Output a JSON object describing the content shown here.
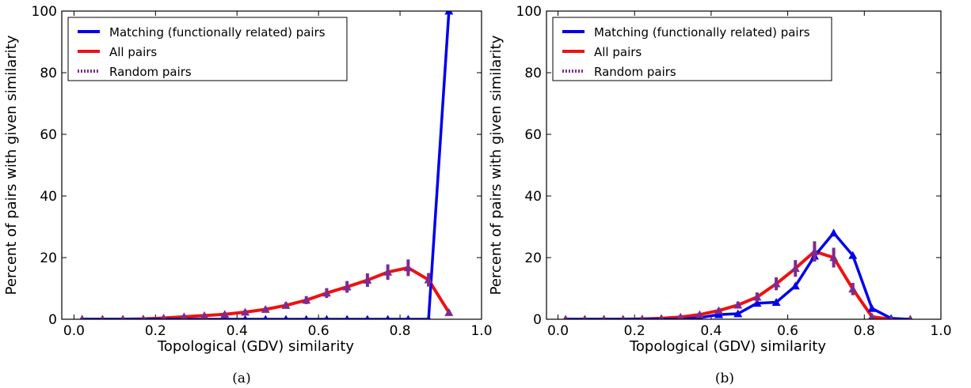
{
  "chart_data": [
    {
      "type": "line",
      "caption": "(a)",
      "xlabel": "Topological (GDV) similarity",
      "ylabel": "Percent of pairs with given similarity",
      "xlim": [
        -0.03,
        1.0
      ],
      "ylim": [
        0,
        100
      ],
      "xticks": [
        "0.0",
        "0.2",
        "0.4",
        "0.6",
        "0.8",
        "1.0"
      ],
      "yticks": [
        "0",
        "20",
        "40",
        "60",
        "80",
        "100"
      ],
      "legend_position": "top-left",
      "x": [
        0.02,
        0.07,
        0.12,
        0.17,
        0.22,
        0.27,
        0.32,
        0.37,
        0.42,
        0.47,
        0.52,
        0.57,
        0.62,
        0.67,
        0.72,
        0.77,
        0.82,
        0.87,
        0.92
      ],
      "series": [
        {
          "name": "Matching (functionally related) pairs",
          "color": "#0000ee",
          "values": [
            0,
            0,
            0,
            0,
            0,
            0,
            0,
            0,
            0,
            0,
            0,
            0,
            0,
            0,
            0,
            0,
            0,
            0,
            100
          ]
        },
        {
          "name": "All pairs",
          "color": "#ee1111",
          "values": [
            0,
            0,
            0,
            0.1,
            0.4,
            0.8,
            1.2,
            1.6,
            2.3,
            3.2,
            4.5,
            6.2,
            8.5,
            10.5,
            12.7,
            15.3,
            16.7,
            12.8,
            2.2
          ]
        },
        {
          "name": "Random pairs",
          "color": "#7f2a8f",
          "values": [
            0,
            0,
            0,
            0.1,
            0.4,
            0.8,
            1.2,
            1.6,
            2.3,
            3.2,
            4.5,
            6.2,
            8.5,
            10.5,
            12.7,
            15.3,
            16.7,
            12.8,
            2.2
          ],
          "error": [
            0,
            0,
            0,
            0.2,
            0.4,
            0.5,
            0.5,
            0.6,
            0.7,
            0.8,
            1.0,
            1.3,
            1.6,
            1.9,
            2.2,
            2.5,
            2.7,
            2.2,
            0.7
          ]
        }
      ]
    },
    {
      "type": "line",
      "caption": "(b)",
      "xlabel": "Topological (GDV) similarity",
      "ylabel": "Percent of pairs with given similarity",
      "xlim": [
        -0.03,
        1.0
      ],
      "ylim": [
        0,
        100
      ],
      "xticks": [
        "0.0",
        "0.2",
        "0.4",
        "0.6",
        "0.8",
        "1.0"
      ],
      "yticks": [
        "0",
        "20",
        "40",
        "60",
        "80",
        "100"
      ],
      "legend_position": "top-left",
      "x": [
        0.02,
        0.07,
        0.12,
        0.17,
        0.22,
        0.27,
        0.32,
        0.37,
        0.42,
        0.47,
        0.52,
        0.57,
        0.62,
        0.67,
        0.72,
        0.77,
        0.82,
        0.87,
        0.92
      ],
      "series": [
        {
          "name": "Matching (functionally related) pairs",
          "color": "#0000ee",
          "values": [
            0,
            0,
            0,
            0,
            0,
            0,
            0,
            0.5,
            1.5,
            1.8,
            5.2,
            5.5,
            10.8,
            20.5,
            28.0,
            20.7,
            3.5,
            0.3,
            0
          ]
        },
        {
          "name": "All pairs",
          "color": "#ee1111",
          "values": [
            0,
            0,
            0,
            0,
            0.1,
            0.3,
            0.7,
            1.5,
            2.8,
            4.6,
            7.2,
            11.5,
            16.5,
            22.0,
            20.0,
            9.8,
            0.8,
            0,
            0
          ]
        },
        {
          "name": "Random pairs",
          "color": "#7f2a8f",
          "values": [
            0,
            0,
            0,
            0,
            0.1,
            0.3,
            0.7,
            1.5,
            2.8,
            4.6,
            7.2,
            11.5,
            16.5,
            22.0,
            20.0,
            9.8,
            0.8,
            0,
            0
          ],
          "error": [
            0,
            0,
            0,
            0,
            0.2,
            0.3,
            0.4,
            0.6,
            0.8,
            1.1,
            1.5,
            2.1,
            2.7,
            3.3,
            3.2,
            2.0,
            0.5,
            0,
            0
          ]
        }
      ]
    }
  ]
}
